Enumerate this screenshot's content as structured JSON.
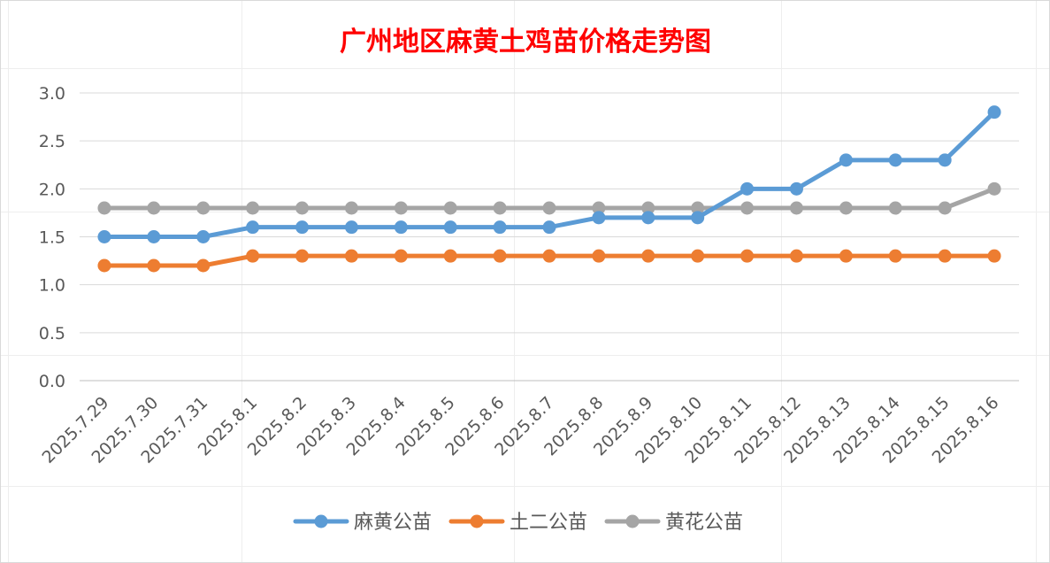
{
  "chart_data": {
    "type": "line",
    "title": "广州地区麻黄土鸡苗价格走势图",
    "title_color": "#ff0000",
    "categories": [
      "2025.7.29",
      "2025.7.30",
      "2025.7.31",
      "2025.8.1",
      "2025.8.2",
      "2025.8.3",
      "2025.8.4",
      "2025.8.5",
      "2025.8.6",
      "2025.8.7",
      "2025.8.8",
      "2025.8.9",
      "2025.8.10",
      "2025.8.11",
      "2025.8.12",
      "2025.8.13",
      "2025.8.14",
      "2025.8.15",
      "2025.8.16"
    ],
    "series": [
      {
        "name": "麻黄公苗",
        "color": "#5b9bd5",
        "values": [
          1.5,
          1.5,
          1.5,
          1.6,
          1.6,
          1.6,
          1.6,
          1.6,
          1.6,
          1.6,
          1.7,
          1.7,
          1.7,
          2.0,
          2.0,
          2.3,
          2.3,
          2.3,
          2.8
        ]
      },
      {
        "name": "土二公苗",
        "color": "#ed7d31",
        "values": [
          1.2,
          1.2,
          1.2,
          1.3,
          1.3,
          1.3,
          1.3,
          1.3,
          1.3,
          1.3,
          1.3,
          1.3,
          1.3,
          1.3,
          1.3,
          1.3,
          1.3,
          1.3,
          1.3
        ]
      },
      {
        "name": "黄花公苗",
        "color": "#a5a5a5",
        "values": [
          1.8,
          1.8,
          1.8,
          1.8,
          1.8,
          1.8,
          1.8,
          1.8,
          1.8,
          1.8,
          1.8,
          1.8,
          1.8,
          1.8,
          1.8,
          1.8,
          1.8,
          1.8,
          2.0
        ]
      }
    ],
    "y_ticks": [
      "0.0",
      "0.5",
      "1.0",
      "1.5",
      "2.0",
      "2.5",
      "3.0"
    ],
    "ylim": [
      0,
      3.0
    ],
    "grid": true,
    "legend": "bottom"
  }
}
